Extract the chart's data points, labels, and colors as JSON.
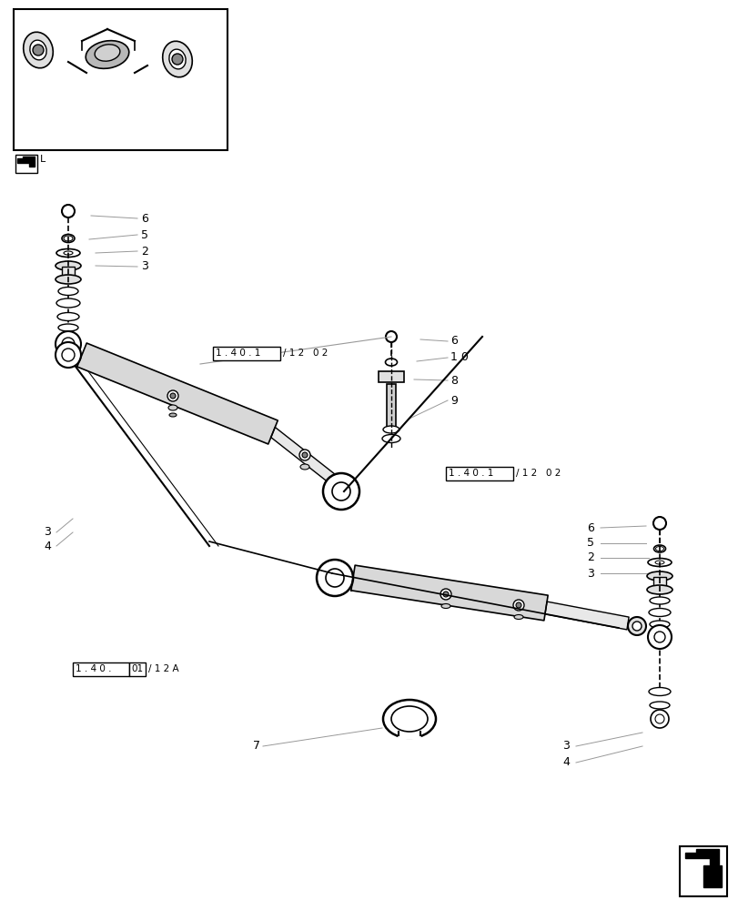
{
  "bg_color": "#ffffff",
  "line_color": "#000000",
  "light_line_color": "#999999",
  "text_color": "#000000",
  "fig_width": 8.12,
  "fig_height": 10.0,
  "dpi": 100,
  "label_box1_text": "1 . 4 0 . 1",
  "label_box1_suffix": "/ 1 2   0 2",
  "label_box2_text": "1 . 4 0 . 1",
  "label_box2_suffix": "/ 1 2   0 2",
  "label_box3_text": "1 . 4 0 .",
  "label_box3_num": "01",
  "label_box3_suffix": "/ 1 2 A"
}
